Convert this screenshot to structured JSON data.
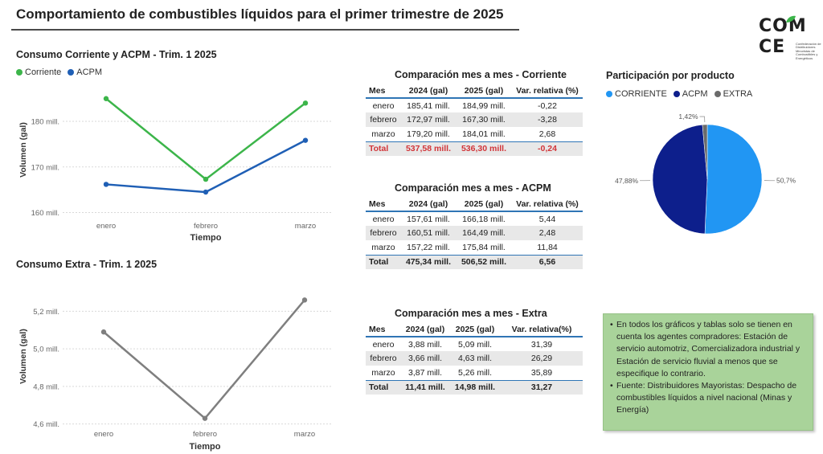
{
  "page": {
    "title": "Comportamiento de combustibles líquidos para el primer trimestre de 2025"
  },
  "logo": {
    "line1": "COM",
    "line2": "CE",
    "subtitle": "Confederación de Distribuidores Minoristas de Combustibles y Energéticos"
  },
  "colors": {
    "corriente": "#3cb54a",
    "acpm": "#1f5fb5",
    "extra": "#7f7f7f",
    "pie_corriente": "#2196f3",
    "pie_acpm": "#0d1f8c",
    "pie_extra": "#6b6b6b",
    "total_red": "#d13438",
    "note_bg": "#a9d39a"
  },
  "chart_data": [
    {
      "type": "line",
      "title": "Consumo Corriente y ACPM - Trim. 1 2025",
      "xlabel": "Tiempo",
      "ylabel": "Volumen (gal)",
      "categories": [
        "enero",
        "febrero",
        "marzo"
      ],
      "series": [
        {
          "name": "Corriente",
          "values": [
            184.99,
            167.3,
            184.01
          ]
        },
        {
          "name": "ACPM",
          "values": [
            166.18,
            164.49,
            175.84
          ]
        }
      ],
      "yticks": [
        160,
        170,
        180
      ],
      "ytick_labels": [
        "160 mill.",
        "170 mill.",
        "180 mill."
      ],
      "ylim": [
        158.5,
        189
      ],
      "legend": "top-left",
      "grid": true
    },
    {
      "type": "line",
      "title": "Consumo Extra - Trim. 1 2025",
      "xlabel": "Tiempo",
      "ylabel": "Volumen (gal)",
      "categories": [
        "enero",
        "febrero",
        "marzo"
      ],
      "series": [
        {
          "name": "Extra",
          "values": [
            5.09,
            4.63,
            5.26
          ]
        }
      ],
      "yticks": [
        4.6,
        4.8,
        5.0,
        5.2
      ],
      "ytick_labels": [
        "4,6 mill.",
        "4,8 mill.",
        "5,0 mill.",
        "5,2 mill."
      ],
      "ylim": [
        4.56,
        5.36
      ],
      "grid": true
    },
    {
      "type": "pie",
      "title": "Participación por producto",
      "labels": [
        "CORRIENTE",
        "ACPM",
        "EXTRA"
      ],
      "values": [
        50.7,
        47.88,
        1.42
      ],
      "value_labels": [
        "50,7%",
        "47,88%",
        "1,42%"
      ],
      "legend": "top"
    }
  ],
  "tables": [
    {
      "title": "Comparación mes a mes - Corriente",
      "headers": [
        "Mes",
        "2024 (gal)",
        "2025 (gal)",
        "Var. relativa (%)"
      ],
      "rows": [
        [
          "enero",
          "185,41 mill.",
          "184,99 mill.",
          "-0,22"
        ],
        [
          "febrero",
          "172,97 mill.",
          "167,30 mill.",
          "-3,28"
        ],
        [
          "marzo",
          "179,20 mill.",
          "184,01 mill.",
          "2,68"
        ]
      ],
      "total": [
        "Total",
        "537,58 mill.",
        "536,30 mill.",
        "-0,24"
      ]
    },
    {
      "title": "Comparación mes a mes - ACPM",
      "headers": [
        "Mes",
        "2024 (gal)",
        "2025 (gal)",
        "Var. relativa (%)"
      ],
      "rows": [
        [
          "enero",
          "157,61 mill.",
          "166,18 mill.",
          "5,44"
        ],
        [
          "febrero",
          "160,51 mill.",
          "164,49 mill.",
          "2,48"
        ],
        [
          "marzo",
          "157,22 mill.",
          "175,84 mill.",
          "11,84"
        ]
      ],
      "total": [
        "Total",
        "475,34 mill.",
        "506,52 mill.",
        "6,56"
      ]
    },
    {
      "title": "Comparación mes a mes - Extra",
      "headers": [
        "Mes",
        "2024 (gal)",
        "2025 (gal)",
        "Var. relativa(%)"
      ],
      "rows": [
        [
          "enero",
          "3,88 mill.",
          "5,09 mill.",
          "31,39"
        ],
        [
          "febrero",
          "3,66 mill.",
          "4,63 mill.",
          "26,29"
        ],
        [
          "marzo",
          "3,87 mill.",
          "5,26 mill.",
          "35,89"
        ]
      ],
      "total": [
        "Total",
        "11,41 mill.",
        "14,98 mill.",
        "31,27"
      ]
    }
  ],
  "note": {
    "items": [
      "En todos los gráficos y tablas solo se tienen en cuenta los agentes compradores: Estación de servicio automotriz, Comercializadora industrial y Estación de servicio fluvial a menos que se especifique lo contrario.",
      "Fuente: Distribuidores Mayoristas: Despacho de combustibles líquidos a nivel nacional (Minas y Energía)"
    ]
  }
}
